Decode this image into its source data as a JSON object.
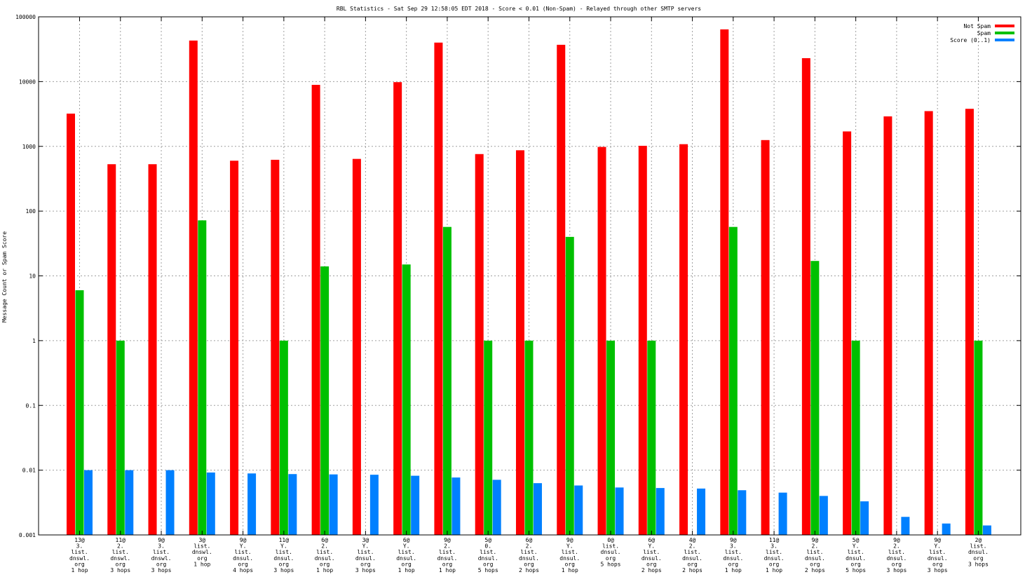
{
  "chart_data": {
    "type": "bar",
    "title": "RBL Statistics - Sat Sep 29 12:58:05 EDT 2018 - Score < 0.01 (Non-Spam) - Relayed through other SMTP servers",
    "ylabel": "Message Count or Spam Score",
    "xlabel": "",
    "yscale": "log",
    "ylim": [
      0.001,
      100000
    ],
    "y_ticks": [
      "0.001",
      "0.01",
      "0.1",
      "1",
      "10",
      "100",
      "1000",
      "10000",
      "100000"
    ],
    "grid": true,
    "legend_position": "top-right",
    "categories": [
      [
        "13@",
        "3.",
        "list.",
        "dnswl.",
        "org",
        "1 hop"
      ],
      [
        "11@",
        "2.",
        "list.",
        "dnswl.",
        "org",
        "3 hops"
      ],
      [
        "9@",
        "3.",
        "list.",
        "dnswl.",
        "org",
        "3 hops"
      ],
      [
        "3@",
        "list.",
        "dnswl.",
        "org",
        "1 hop"
      ],
      [
        "9@",
        "Y.",
        "list.",
        "dnsul.",
        "org",
        "4 hops"
      ],
      [
        "11@",
        "Y.",
        "list.",
        "dnsul.",
        "org",
        "3 hops"
      ],
      [
        "6@",
        "2.",
        "list.",
        "dnsul.",
        "org",
        "1 hop"
      ],
      [
        "3@",
        "Y.",
        "list.",
        "dnsul.",
        "org",
        "3 hops"
      ],
      [
        "6@",
        "Y.",
        "list.",
        "dnsul.",
        "org",
        "1 hop"
      ],
      [
        "9@",
        "2.",
        "list.",
        "dnsul.",
        "org",
        "1 hop"
      ],
      [
        "5@",
        "0.",
        "list.",
        "dnsul.",
        "org",
        "5 hops"
      ],
      [
        "6@",
        "2.",
        "list.",
        "dnsul.",
        "org",
        "2 hops"
      ],
      [
        "9@",
        "Y.",
        "list.",
        "dnsul.",
        "org",
        "1 hop"
      ],
      [
        "0@",
        "list.",
        "dnsul.",
        "org",
        "5 hops"
      ],
      [
        "6@",
        "Y.",
        "list.",
        "dnsul.",
        "org",
        "2 hops"
      ],
      [
        "4@",
        "2.",
        "list.",
        "dnsul.",
        "org",
        "2 hops"
      ],
      [
        "9@",
        "3.",
        "list.",
        "dnsul.",
        "org",
        "1 hop"
      ],
      [
        "11@",
        "3.",
        "list.",
        "dnsul.",
        "org",
        "1 hop"
      ],
      [
        "9@",
        "2.",
        "list.",
        "dnsul.",
        "org",
        "2 hops"
      ],
      [
        "5@",
        "Y.",
        "list.",
        "dnsul.",
        "org",
        "5 hops"
      ],
      [
        "9@",
        "2.",
        "list.",
        "dnsul.",
        "org",
        "3 hops"
      ],
      [
        "9@",
        "Y.",
        "list.",
        "dnsul.",
        "org",
        "3 hops"
      ],
      [
        "2@",
        "list.",
        "dnsul.",
        "org",
        "3 hops"
      ]
    ],
    "series": [
      {
        "name": "Not Spam",
        "color": "#ff0000",
        "values": [
          3200,
          530,
          530,
          43000,
          600,
          620,
          8900,
          640,
          9800,
          40000,
          760,
          870,
          37000,
          980,
          1020,
          1080,
          64000,
          1250,
          23000,
          1700,
          2900,
          3500,
          3800
        ]
      },
      {
        "name": "Spam",
        "color": "#00c000",
        "values": [
          6,
          1,
          null,
          72,
          null,
          1,
          14,
          null,
          15,
          57,
          1,
          1,
          40,
          1,
          1,
          null,
          57,
          null,
          17,
          1,
          null,
          null,
          1
        ]
      },
      {
        "name": "Score (0..1)",
        "color": "#0080ff",
        "values": [
          0.01,
          0.01,
          0.01,
          0.0092,
          0.0089,
          0.0087,
          0.0086,
          0.0085,
          0.0082,
          0.0077,
          0.0071,
          0.0063,
          0.0058,
          0.0054,
          0.0053,
          0.0052,
          0.0049,
          0.0045,
          0.004,
          0.0033,
          0.0019,
          0.0015,
          0.0014
        ]
      }
    ]
  }
}
